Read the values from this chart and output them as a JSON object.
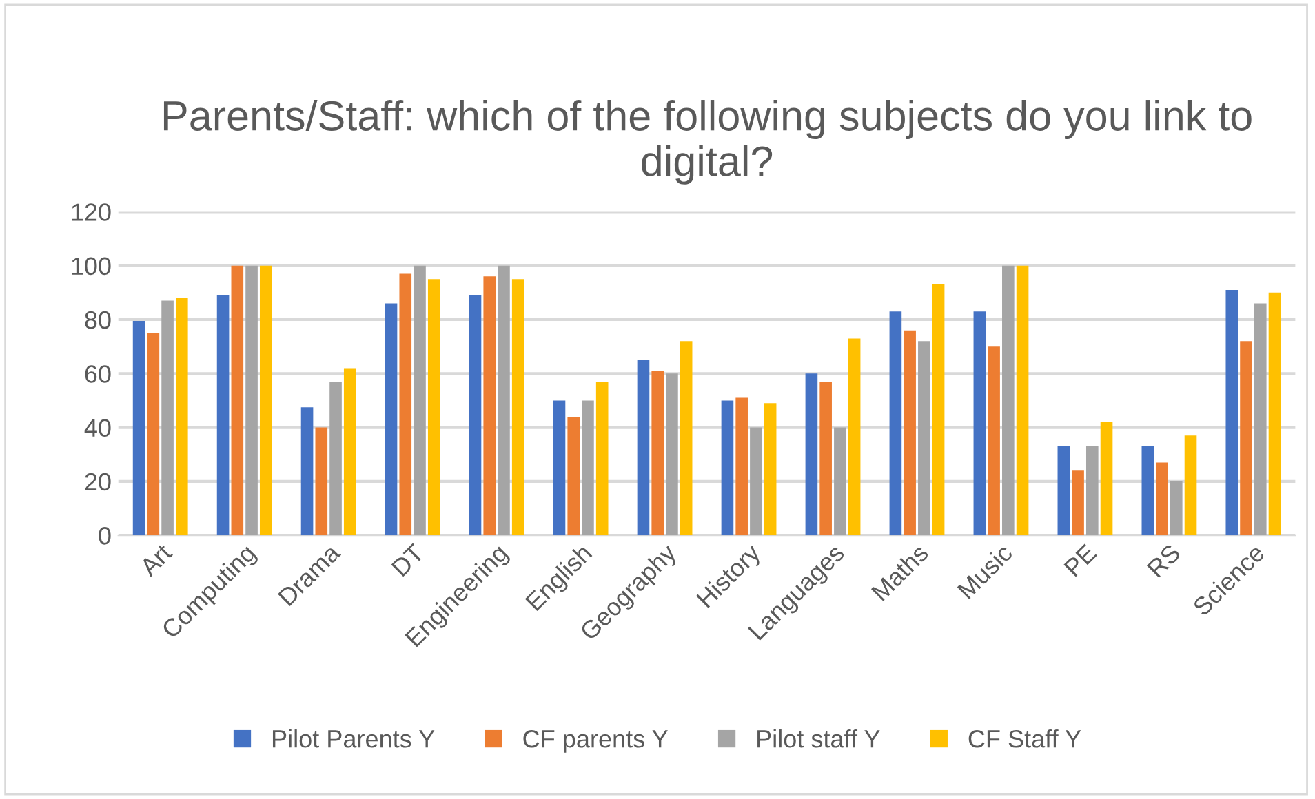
{
  "chart_data": {
    "type": "bar",
    "title": "Parents/Staff: which of the following subjects do you link to digital?",
    "categories": [
      "Art",
      "Computing",
      "Drama",
      "DT",
      "Engineering",
      "English",
      "Geography",
      "History",
      "Languages",
      "Maths",
      "Music",
      "PE",
      "RS",
      "Science"
    ],
    "series": [
      {
        "name": "Pilot Parents Y",
        "color": "#4472c4",
        "values": [
          79.5,
          89,
          47.5,
          86,
          89,
          50,
          65,
          50,
          60,
          83,
          83,
          33,
          33,
          91
        ]
      },
      {
        "name": "CF parents Y",
        "color": "#ed7d31",
        "values": [
          75,
          100,
          40,
          97,
          96,
          44,
          61,
          51,
          57,
          76,
          70,
          24,
          27,
          72
        ]
      },
      {
        "name": "Pilot staff Y",
        "color": "#a5a5a5",
        "values": [
          87,
          100,
          57,
          100,
          100,
          50,
          60,
          40,
          40,
          72,
          100,
          33,
          20,
          86
        ]
      },
      {
        "name": "CF Staff Y",
        "color": "#ffc000",
        "values": [
          88,
          100,
          62,
          95,
          95,
          57,
          72,
          49,
          73,
          93,
          100,
          42,
          37,
          90
        ]
      }
    ],
    "ylim": [
      0,
      120
    ],
    "yticks": [
      0,
      20,
      40,
      60,
      80,
      100,
      120
    ],
    "grid": "y",
    "legend": "bottom"
  }
}
